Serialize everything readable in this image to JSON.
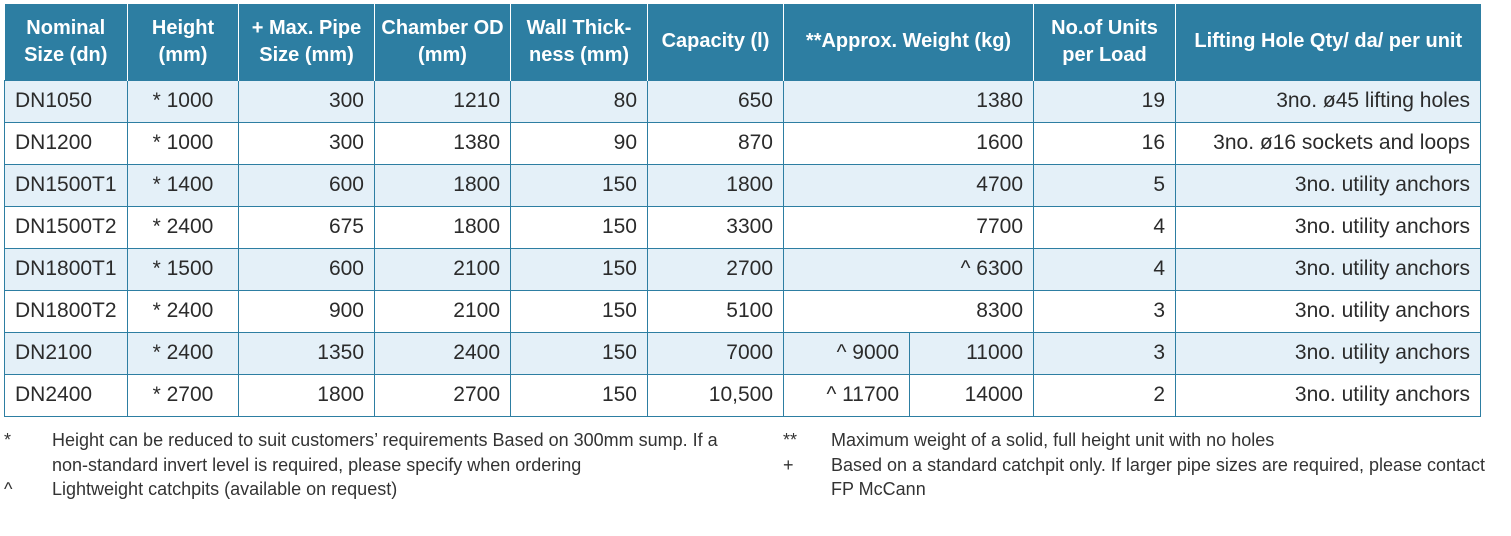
{
  "table": {
    "headers": [
      "Nominal Size (dn)",
      "Height (mm)",
      "+ Max. Pipe Size (mm)",
      "Chamber OD (mm)",
      "Wall Thick-ness (mm)",
      "Capacity (l)",
      "**Approx. Weight (kg)",
      "No.of Units per Load",
      "Lifting Hole Qty/ da/ per unit"
    ],
    "rows": [
      {
        "size": "DN1050",
        "height": "* 1000",
        "pipe": "300",
        "od": "1210",
        "wall": "80",
        "capacity": "650",
        "weight_light": "",
        "weight": "1380",
        "units": "19",
        "lifting": "3no. ø45 lifting holes"
      },
      {
        "size": "DN1200",
        "height": "* 1000",
        "pipe": "300",
        "od": "1380",
        "wall": "90",
        "capacity": "870",
        "weight_light": "",
        "weight": "1600",
        "units": "16",
        "lifting": "3no. ø16 sockets and loops"
      },
      {
        "size": "DN1500T1",
        "height": "* 1400",
        "pipe": "600",
        "od": "1800",
        "wall": "150",
        "capacity": "1800",
        "weight_light": "",
        "weight": "4700",
        "units": "5",
        "lifting": "3no. utility anchors"
      },
      {
        "size": "DN1500T2",
        "height": "* 2400",
        "pipe": "675",
        "od": "1800",
        "wall": "150",
        "capacity": "3300",
        "weight_light": "",
        "weight": "7700",
        "units": "4",
        "lifting": "3no. utility anchors"
      },
      {
        "size": "DN1800T1",
        "height": "* 1500",
        "pipe": "600",
        "od": "2100",
        "wall": "150",
        "capacity": "2700",
        "weight_light": "",
        "weight": "^  6300",
        "units": "4",
        "lifting": "3no. utility anchors"
      },
      {
        "size": "DN1800T2",
        "height": "* 2400",
        "pipe": "900",
        "od": "2100",
        "wall": "150",
        "capacity": "5100",
        "weight_light": "",
        "weight": "8300",
        "units": "3",
        "lifting": "3no. utility anchors"
      },
      {
        "size": "DN2100",
        "height": "* 2400",
        "pipe": "1350",
        "od": "2400",
        "wall": "150",
        "capacity": "7000",
        "weight_light": "^ 9000",
        "weight": "11000",
        "units": "3",
        "lifting": "3no. utility anchors"
      },
      {
        "size": "DN2400",
        "height": "* 2700",
        "pipe": "1800",
        "od": "2700",
        "wall": "150",
        "capacity": "10,500",
        "weight_light": "^ 11700",
        "weight": "14000",
        "units": "2",
        "lifting": "3no. utility anchors"
      }
    ]
  },
  "notes": {
    "left": [
      {
        "mark": "*",
        "text": "Height can be reduced to suit customers’ requirements Based on 300mm sump. If a non-standard invert level is required, please specify when ordering"
      },
      {
        "mark": "^",
        "text": "Lightweight catchpits (available on request)"
      }
    ],
    "right": [
      {
        "mark": "**",
        "text": "Maximum weight of a solid, full height unit with no holes"
      },
      {
        "mark": "+",
        "text": "Based on a standard catchpit only. If larger pipe sizes are required, please contact FP McCann"
      }
    ]
  },
  "colors": {
    "header_bg": "#2d7ea2",
    "row_alt_bg": "#e4f0f8",
    "border": "#2d7ea2"
  }
}
